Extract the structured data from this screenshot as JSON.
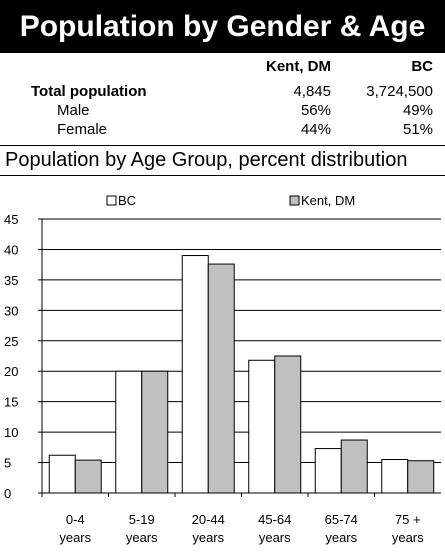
{
  "header": {
    "title": "Population by Gender & Age"
  },
  "summary": {
    "col1": "Kent, DM",
    "col2": "BC",
    "rows": [
      {
        "label": "Total population",
        "v1": "4,845",
        "v2": "3,724,500"
      },
      {
        "label": "Male",
        "v1": "56%",
        "v2": "49%"
      },
      {
        "label": "Female",
        "v1": "44%",
        "v2": "51%"
      }
    ]
  },
  "section": {
    "title": "Population by Age Group, percent distribution"
  },
  "colors": {
    "bc": "#ffffff",
    "kent": "#c0c0c0",
    "axis": "#000000"
  },
  "chart_data": {
    "type": "bar",
    "categories": [
      "0-4 years",
      "5-19 years",
      "20-44 years",
      "45-64 years",
      "65-74 years",
      "75 + years"
    ],
    "category_lines": [
      [
        "0-4",
        "years"
      ],
      [
        "5-19",
        "years"
      ],
      [
        "20-44",
        "years"
      ],
      [
        "45-64",
        "years"
      ],
      [
        "65-74",
        "years"
      ],
      [
        "75 +",
        "years"
      ]
    ],
    "series": [
      {
        "name": "BC",
        "values": [
          6.2,
          20.0,
          39.0,
          21.8,
          7.3,
          5.5
        ]
      },
      {
        "name": "Kent, DM",
        "values": [
          5.4,
          20.0,
          37.6,
          22.5,
          8.7,
          5.3
        ]
      }
    ],
    "ylim": [
      0,
      45
    ],
    "yticks": [
      0,
      5,
      10,
      15,
      20,
      25,
      30,
      35,
      40,
      45
    ],
    "grid": true,
    "legend": "top"
  }
}
